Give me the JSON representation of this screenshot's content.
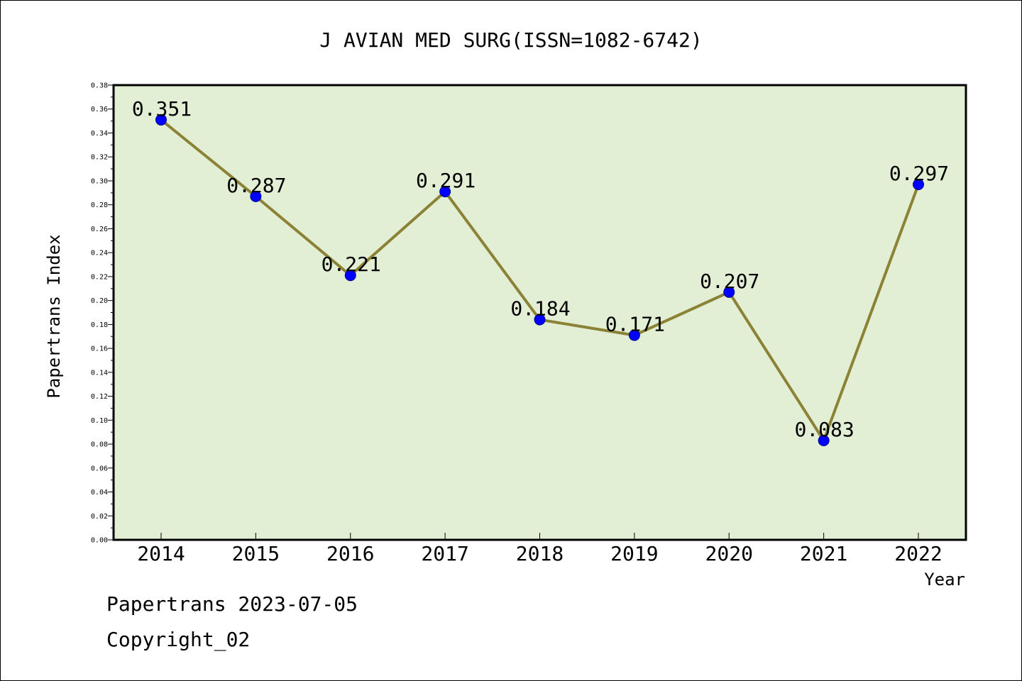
{
  "footer": {
    "date_line": "Papertrans 2023-07-05",
    "copyright_line": "Copyright_02"
  },
  "colors": {
    "plot_background": "#E2EFD5",
    "line": "#8B8236",
    "marker": "#0000FF"
  },
  "chart_data": {
    "type": "line",
    "title": "J AVIAN MED SURG(ISSN=1082-6742)",
    "xlabel": "Year",
    "ylabel": "Papertrans Index",
    "categories": [
      "2014",
      "2015",
      "2016",
      "2017",
      "2018",
      "2019",
      "2020",
      "2021",
      "2022"
    ],
    "values": [
      0.351,
      0.287,
      0.221,
      0.291,
      0.184,
      0.171,
      0.207,
      0.083,
      0.297
    ],
    "data_labels": [
      "0.351",
      "0.287",
      "0.221",
      "0.291",
      "0.184",
      "0.171",
      "0.207",
      "0.083",
      "0.297"
    ],
    "ylim": [
      0,
      0.38
    ],
    "yticks": [
      "0.00",
      "0.02",
      "0.04",
      "0.06",
      "0.08",
      "0.10",
      "0.12",
      "0.14",
      "0.16",
      "0.18",
      "0.20",
      "0.22",
      "0.24",
      "0.26",
      "0.28",
      "0.30",
      "0.32",
      "0.34",
      "0.36",
      "0.38"
    ],
    "grid": false,
    "legend": "none"
  }
}
